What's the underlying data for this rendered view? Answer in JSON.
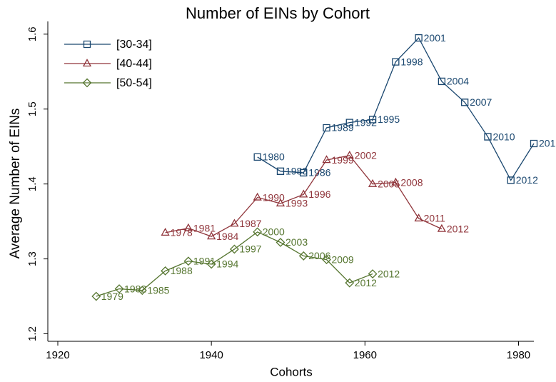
{
  "chart_data": {
    "type": "line",
    "title": "Number of EINs by Cohort",
    "x_label": "Cohorts",
    "y_label": "Average Number of EINs",
    "xlim": [
      1918.7,
      1982
    ],
    "xticks": [
      1920,
      1940,
      1960,
      1980
    ],
    "ylim": [
      1.19,
      1.617
    ],
    "yticks": [
      1.2,
      1.3,
      1.4,
      1.5,
      1.6
    ],
    "grid": false,
    "legend": "top-left",
    "series": [
      {
        "name": "[30-34]",
        "color": "#1a476f",
        "marker": "square",
        "x": [
          1946,
          1949,
          1952,
          1955,
          1958,
          1961,
          1964,
          1967,
          1970,
          1973,
          1976,
          1979,
          1982
        ],
        "values": [
          1.436,
          1.417,
          1.415,
          1.475,
          1.482,
          1.486,
          1.563,
          1.595,
          1.537,
          1.509,
          1.463,
          1.405,
          1.454
        ],
        "labels": [
          "1980",
          "1983",
          "1986",
          "1989",
          "1992",
          "1995",
          "1998",
          "2001",
          "2004",
          "2007",
          "2010",
          "2012",
          "201"
        ]
      },
      {
        "name": "[40-44]",
        "color": "#90353b",
        "marker": "triangle",
        "x": [
          1934,
          1937,
          1940,
          1943,
          1946,
          1949,
          1952,
          1955,
          1958,
          1961,
          1964,
          1967,
          1970
        ],
        "values": [
          1.335,
          1.341,
          1.33,
          1.347,
          1.382,
          1.374,
          1.386,
          1.432,
          1.438,
          1.4,
          1.402,
          1.354,
          1.34
        ],
        "labels": [
          "1978",
          "1981",
          "1984",
          "1987",
          "1990",
          "1993",
          "1996",
          "1999",
          "2002",
          "2005",
          "2008",
          "2011",
          "2012"
        ]
      },
      {
        "name": "[50-54]",
        "color": "#55752f",
        "marker": "diamond",
        "x": [
          1925,
          1928,
          1931,
          1934,
          1937,
          1940,
          1943,
          1946,
          1949,
          1952,
          1955,
          1958,
          1961
        ],
        "values": [
          1.25,
          1.26,
          1.258,
          1.284,
          1.297,
          1.293,
          1.313,
          1.336,
          1.322,
          1.304,
          1.299,
          1.268,
          1.28
        ],
        "labels": [
          "1979",
          "1982",
          "1985",
          "1988",
          "1991",
          "1994",
          "1997",
          "2000",
          "2003",
          "2006",
          "2009",
          "2012",
          "2012"
        ]
      }
    ]
  }
}
